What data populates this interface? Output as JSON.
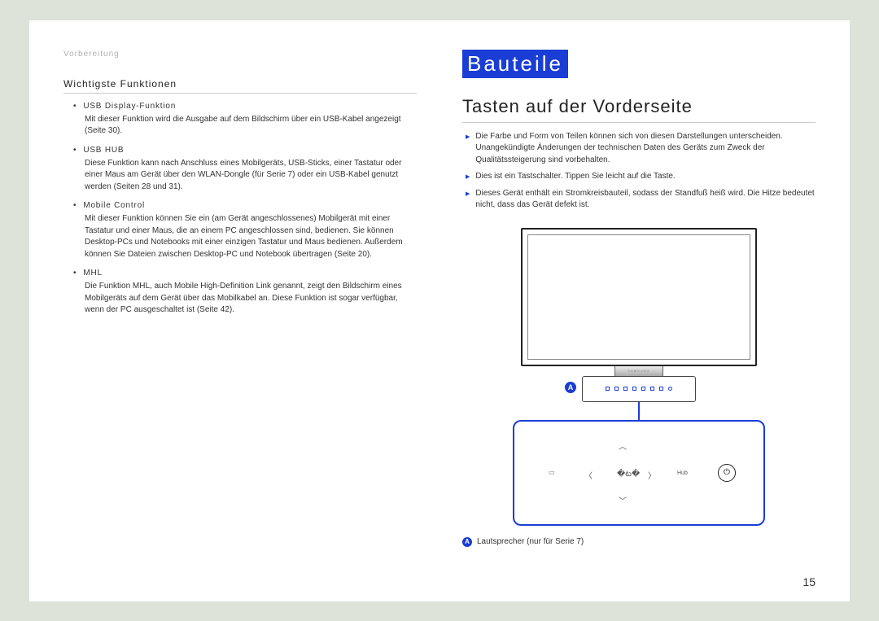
{
  "breadcrumb": "Vorbereitung",
  "left": {
    "heading": "Wichtigste Funktionen",
    "items": [
      {
        "title": "USB Display-Funktion",
        "body": "Mit dieser Funktion wird die Ausgabe auf dem Bildschirm über ein USB-Kabel angezeigt (Seite 30)."
      },
      {
        "title": "USB HUB",
        "body": "Diese Funktion kann nach Anschluss eines Mobilgeräts, USB-Sticks, einer Tastatur oder einer Maus am Gerät über den WLAN-Dongle (für Serie 7) oder ein USB-Kabel genutzt werden (Seiten 28 und 31)."
      },
      {
        "title": "Mobile Control",
        "body": "Mit dieser Funktion können Sie ein (am Gerät angeschlossenes) Mobilgerät mit einer Tastatur und einer Maus, die an einem PC angeschlossen sind, bedienen. Sie können Desktop-PCs und Notebooks mit einer einzigen Tastatur und Maus bedienen. Außerdem können Sie Dateien zwischen Desktop-PC und Notebook übertragen (Seite 20)."
      },
      {
        "title": "MHL",
        "body": "Die Funktion MHL, auch Mobile High-Definition Link genannt, zeigt den Bildschirm eines Mobilgeräts auf dem Gerät über das Mobilkabel an. Diese Funktion ist sogar verfügbar, wenn der PC ausgeschaltet ist (Seite 42)."
      }
    ]
  },
  "right": {
    "chapter": "Bauteile",
    "subheading": "Tasten auf der Vorderseite",
    "notes": [
      "Die Farbe und Form von Teilen können sich von diesen Darstellungen unterscheiden. Unangekündigte Änderungen der technischen Daten des Geräts zum Zweck der Qualitätssteigerung sind vorbehalten.",
      "Dies ist ein Tastschalter. Tippen Sie leicht auf die Taste.",
      "Dieses Gerät enthält ein Stromkreisbauteil, sodass der Standfuß heiß wird. Die Hitze bedeutet nicht, dass das Gerät defekt ist."
    ],
    "badge": "A",
    "caption": "Lautsprecher (nur für Serie 7)",
    "controls": {
      "up": "︿",
      "down": "﹀",
      "left": "〈",
      "right": "〉",
      "menu": "▭",
      "enter": "�ట�",
      "hub": "Hub",
      "power": "⏻"
    },
    "logo": "SAMSUNG"
  },
  "page_number": "15",
  "colors": {
    "accent": "#1a3dd6",
    "page_bg": "#ffffff",
    "outer_bg": "#dde3d9"
  }
}
